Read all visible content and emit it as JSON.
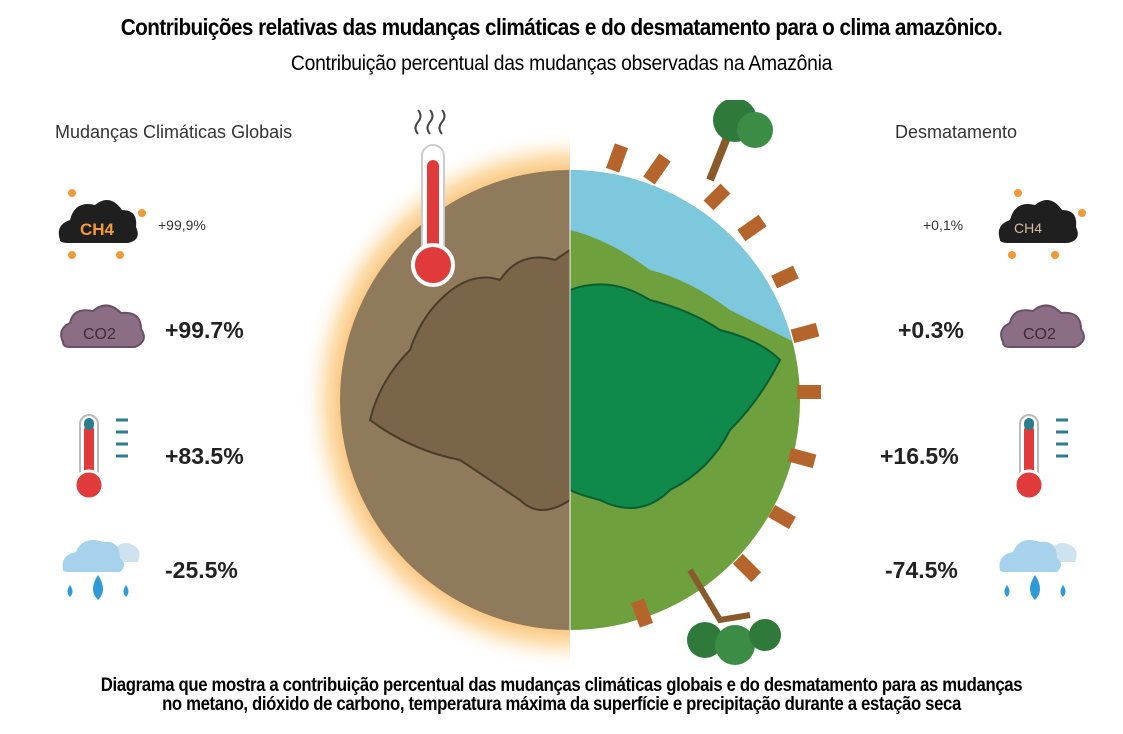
{
  "header": {
    "title": "Contribuições relativas das mudanças climáticas e do desmatamento para o clima amazônico.",
    "subtitle": "Contribuição percentual das mudanças observadas na Amazônia"
  },
  "left_panel": {
    "label": "Mudanças Climáticas Globais",
    "methane": "+99,9%",
    "co2": "+99.7%",
    "temperature": "+83.5%",
    "precipitation": "-25.5%"
  },
  "right_panel": {
    "label": "Desmatamento",
    "methane": "+0,1%",
    "co2": "+0.3%",
    "temperature": "+16.5%",
    "precipitation": "-74.5%"
  },
  "icons": {
    "methane_text": "CH4",
    "co2_text": "CO2"
  },
  "footer": {
    "line1": "Diagrama que mostra a contribuição percentual das mudanças climáticas globais e do desmatamento para as mudanças",
    "line2": "no metano, dióxido de carbono, temperatura máxima da superfície e precipitação durante a estação seca"
  },
  "colors": {
    "dry_land": "#8f7b5c",
    "forest": "#0f8a4a",
    "grass": "#6fa03e",
    "ocean": "#7dc8dc",
    "heat_glow": "#f7a23c",
    "thermometer_red": "#e03a3a",
    "cloud_purple": "#8b6e84",
    "rain_blue": "#2e9ad6"
  }
}
